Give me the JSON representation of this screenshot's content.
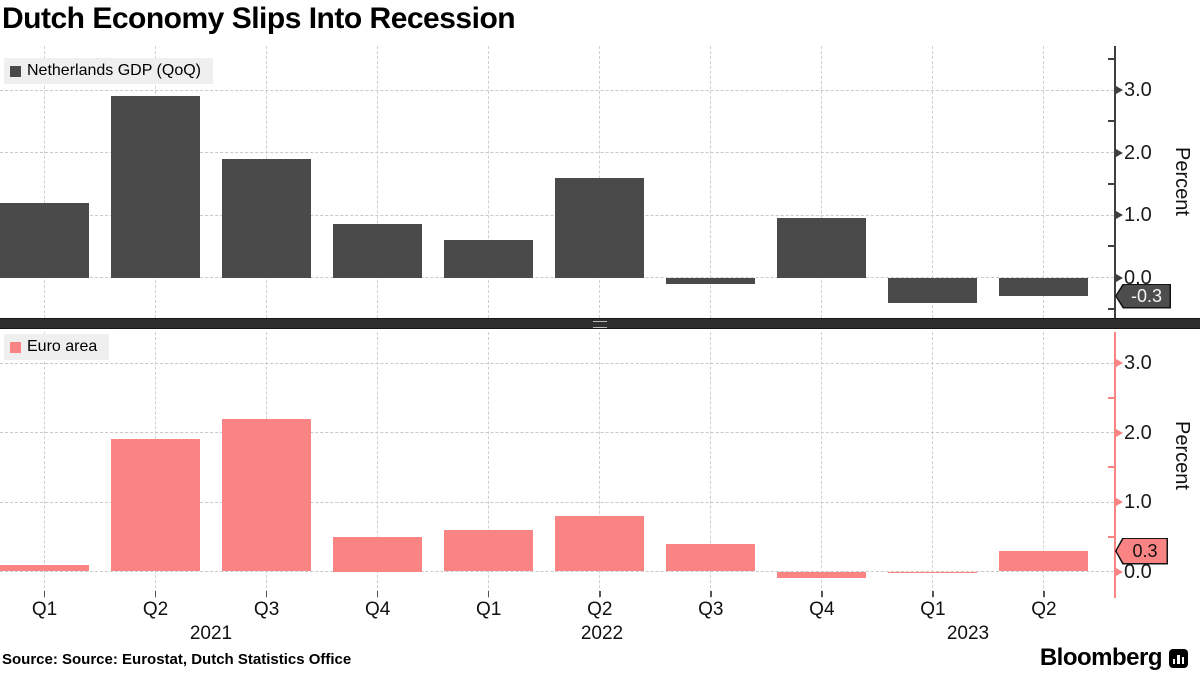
{
  "title": "Dutch Economy Slips Into Recession",
  "source_line": "Source: Source: Eurostat, Dutch Statistics Office",
  "brand": {
    "name": "Bloomberg",
    "icon": "bloomberg-chart-icon"
  },
  "colors": {
    "netherlands_bar": "#4a4a4a",
    "euro_area_bar": "#fa8383",
    "axis_top": "#3f3f3f",
    "axis_bottom": "#fa8383",
    "grid": "#c9c9c9",
    "legend_bg": "#efefef",
    "tag_top_bg": "#4d4d4d",
    "tag_top_text": "#f5f5f5",
    "tag_bottom_bg": "#fa8383",
    "tag_bottom_text": "#111111",
    "tag_border": "#141414"
  },
  "x_axis": {
    "quarters": [
      "Q1",
      "Q2",
      "Q3",
      "Q4",
      "Q1",
      "Q2",
      "Q3",
      "Q4",
      "Q1",
      "Q2"
    ],
    "years": [
      "2021",
      "2022",
      "2023"
    ]
  },
  "chart_data": [
    {
      "type": "bar",
      "panel": "top",
      "legend": "Netherlands GDP (QoQ)",
      "ylabel": "Percent",
      "ytick_labels": [
        "0.0",
        "1.0",
        "2.0",
        "3.0"
      ],
      "yticks": [
        0,
        1,
        2,
        3
      ],
      "ylim": [
        -0.7,
        3.7
      ],
      "grid": true,
      "legend_position": "top-left",
      "last_value_label": "-0.3",
      "categories": [
        "Q1 2021",
        "Q2 2021",
        "Q3 2021",
        "Q4 2021",
        "Q1 2022",
        "Q2 2022",
        "Q3 2022",
        "Q4 2022",
        "Q1 2023",
        "Q2 2023"
      ],
      "values": [
        1.2,
        2.9,
        1.9,
        0.85,
        0.6,
        1.6,
        -0.1,
        0.95,
        -0.4,
        -0.3
      ]
    },
    {
      "type": "bar",
      "panel": "bottom",
      "legend": "Euro area",
      "ylabel": "Percent",
      "ytick_labels": [
        "0.0",
        "1.0",
        "2.0",
        "3.0"
      ],
      "yticks": [
        0,
        1,
        2,
        3
      ],
      "ylim": [
        -0.4,
        3.4
      ],
      "grid": true,
      "legend_position": "top-left",
      "last_value_label": "0.3",
      "categories": [
        "Q1 2021",
        "Q2 2021",
        "Q3 2021",
        "Q4 2021",
        "Q1 2022",
        "Q2 2022",
        "Q3 2022",
        "Q4 2022",
        "Q1 2023",
        "Q2 2023"
      ],
      "values": [
        0.1,
        1.9,
        2.2,
        0.5,
        0.6,
        0.8,
        0.4,
        -0.1,
        0.0,
        0.3
      ]
    }
  ]
}
